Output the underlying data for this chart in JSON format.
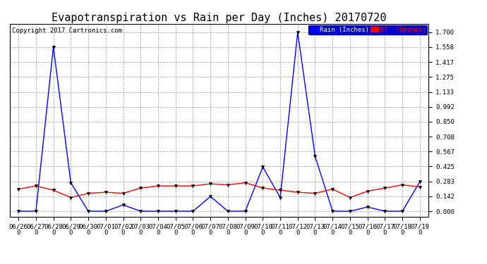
{
  "title": "Evapotranspiration vs Rain per Day (Inches) 20170720",
  "copyright": "Copyright 2017 Cartronics.com",
  "legend_rain": "Rain (Inches)",
  "legend_et": "ET  (Inches)",
  "x_labels": [
    "06/26\n0",
    "06/27\n0",
    "06/28\n0",
    "06/29\n0",
    "06/30\n0",
    "07/01\n0",
    "07/02\n0",
    "07/03\n0",
    "07/04\n0",
    "07/05\n0",
    "07/06\n0",
    "07/07\n0",
    "07/08\n0",
    "07/09\n0",
    "07/10\n0",
    "07/11\n0",
    "07/12\n0",
    "07/13\n0",
    "07/14\n0",
    "07/15\n0",
    "07/16\n0",
    "07/17\n0",
    "07/18\n0",
    "07/19\n0"
  ],
  "rain_values": [
    0.0,
    0.0,
    1.56,
    0.27,
    0.0,
    0.0,
    0.06,
    0.0,
    0.0,
    0.0,
    0.0,
    0.14,
    0.0,
    0.0,
    0.42,
    0.13,
    1.7,
    0.52,
    0.0,
    0.0,
    0.04,
    0.0,
    0.0,
    0.28
  ],
  "et_values": [
    0.21,
    0.24,
    0.2,
    0.13,
    0.17,
    0.18,
    0.17,
    0.22,
    0.24,
    0.24,
    0.24,
    0.26,
    0.25,
    0.27,
    0.22,
    0.2,
    0.18,
    0.17,
    0.21,
    0.13,
    0.19,
    0.22,
    0.25,
    0.23
  ],
  "rain_color": "#0000ff",
  "et_color": "#ff0000",
  "bg_color": "#ffffff",
  "grid_color": "#aaaaaa",
  "yticks": [
    0.0,
    0.142,
    0.283,
    0.425,
    0.567,
    0.708,
    0.85,
    0.992,
    1.133,
    1.275,
    1.417,
    1.558,
    1.7
  ],
  "ymax": 1.78,
  "ymin": -0.05,
  "title_fontsize": 11,
  "tick_fontsize": 6.5,
  "copyright_fontsize": 6.5
}
